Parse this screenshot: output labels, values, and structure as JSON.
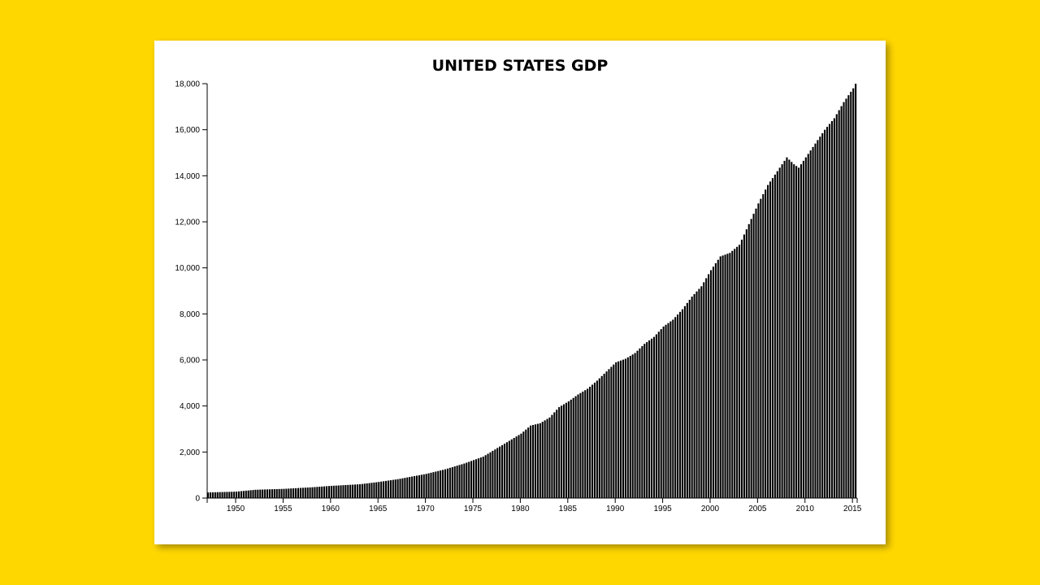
{
  "chart_data": {
    "type": "bar",
    "title": "UNITED STATES GDP",
    "xlabel": "",
    "ylabel": "",
    "x_ticks": [
      "1950",
      "1955",
      "1960",
      "1965",
      "1970",
      "1975",
      "1980",
      "1985",
      "1990",
      "1995",
      "2000",
      "2005",
      "2010",
      "2015"
    ],
    "y_ticks": [
      "0",
      "2,000",
      "4,000",
      "6,000",
      "8,000",
      "10,000",
      "12,000",
      "14,000",
      "16,000",
      "18,000"
    ],
    "xlim": [
      1947.0,
      2015.5
    ],
    "ylim": [
      0,
      18000
    ],
    "grid": false,
    "legend": "none",
    "bar_color": "#000000",
    "frequency": "quarterly",
    "anchors": [
      [
        1947.0,
        243
      ],
      [
        1950.0,
        280
      ],
      [
        1952.0,
        360
      ],
      [
        1955.0,
        400
      ],
      [
        1958.0,
        470
      ],
      [
        1960.0,
        530
      ],
      [
        1963.0,
        600
      ],
      [
        1965.0,
        700
      ],
      [
        1967.0,
        820
      ],
      [
        1970.0,
        1050
      ],
      [
        1972.0,
        1250
      ],
      [
        1974.0,
        1500
      ],
      [
        1976.0,
        1800
      ],
      [
        1978.0,
        2300
      ],
      [
        1980.0,
        2800
      ],
      [
        1981.0,
        3150
      ],
      [
        1982.0,
        3250
      ],
      [
        1983.0,
        3500
      ],
      [
        1984.0,
        3950
      ],
      [
        1985.0,
        4200
      ],
      [
        1986.0,
        4500
      ],
      [
        1987.0,
        4750
      ],
      [
        1988.0,
        5100
      ],
      [
        1989.0,
        5500
      ],
      [
        1990.0,
        5900
      ],
      [
        1991.0,
        6050
      ],
      [
        1992.0,
        6300
      ],
      [
        1993.0,
        6700
      ],
      [
        1994.0,
        7000
      ],
      [
        1995.0,
        7450
      ],
      [
        1996.0,
        7750
      ],
      [
        1997.0,
        8200
      ],
      [
        1998.0,
        8750
      ],
      [
        1999.0,
        9200
      ],
      [
        2000.0,
        9900
      ],
      [
        2001.0,
        10500
      ],
      [
        2002.0,
        10650
      ],
      [
        2003.0,
        11000
      ],
      [
        2004.0,
        11900
      ],
      [
        2005.0,
        12800
      ],
      [
        2006.0,
        13600
      ],
      [
        2007.0,
        14200
      ],
      [
        2008.0,
        14800
      ],
      [
        2008.75,
        14500
      ],
      [
        2009.25,
        14350
      ],
      [
        2010.0,
        14800
      ],
      [
        2011.0,
        15400
      ],
      [
        2012.0,
        16000
      ],
      [
        2013.0,
        16500
      ],
      [
        2014.0,
        17200
      ],
      [
        2015.0,
        17800
      ],
      [
        2015.25,
        18000
      ]
    ]
  }
}
